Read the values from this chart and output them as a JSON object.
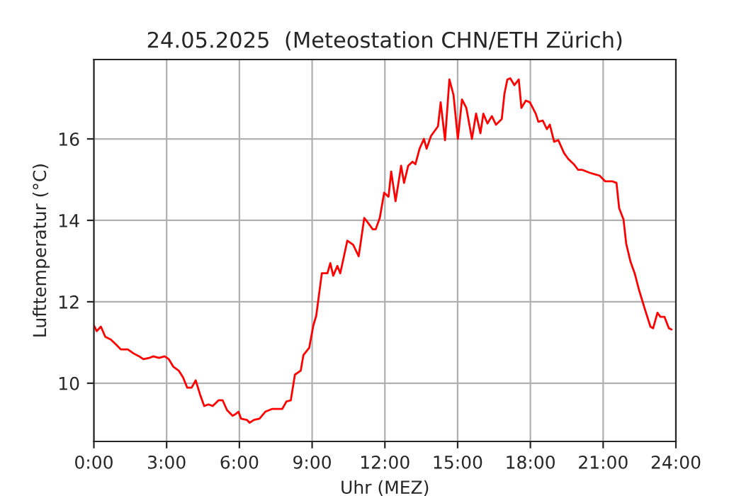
{
  "chart_data": {
    "type": "line",
    "title": "24.05.2025  (Meteostation CHN/ETH Zürich)",
    "xlabel": "Uhr (MEZ)",
    "ylabel": "Lufttemperatur (°C)",
    "x": [
      0,
      0.12,
      0.29,
      0.47,
      0.7,
      0.93,
      1.11,
      1.4,
      1.64,
      1.87,
      2.04,
      2.28,
      2.45,
      2.69,
      2.92,
      3.09,
      3.27,
      3.5,
      3.68,
      3.85,
      4.03,
      4.2,
      4.38,
      4.55,
      4.73,
      4.9,
      5.14,
      5.31,
      5.49,
      5.72,
      5.84,
      5.96,
      6.07,
      6.31,
      6.42,
      6.6,
      6.83,
      7.07,
      7.36,
      7.59,
      7.77,
      7.94,
      8.12,
      8.29,
      8.53,
      8.64,
      8.88,
      9.05,
      9.17,
      9.4,
      9.63,
      9.75,
      9.87,
      10.04,
      10.16,
      10.45,
      10.69,
      10.92,
      11.15,
      11.33,
      11.5,
      11.62,
      11.79,
      11.97,
      12.15,
      12.26,
      12.44,
      12.67,
      12.79,
      12.96,
      13.14,
      13.26,
      13.43,
      13.61,
      13.72,
      13.9,
      14.19,
      14.3,
      14.48,
      14.66,
      14.83,
      15.01,
      15.18,
      15.36,
      15.59,
      15.76,
      15.94,
      16.06,
      16.23,
      16.41,
      16.58,
      16.82,
      16.93,
      17.05,
      17.17,
      17.34,
      17.52,
      17.63,
      17.81,
      17.98,
      18.22,
      18.33,
      18.51,
      18.68,
      18.8,
      18.98,
      19.15,
      19.39,
      19.56,
      19.79,
      19.97,
      20.14,
      20.44,
      20.67,
      20.85,
      21.08,
      21.37,
      21.55,
      21.66,
      21.84,
      21.95,
      22.13,
      22.3,
      22.48,
      22.71,
      22.95,
      23.06,
      23.24,
      23.36,
      23.53,
      23.71,
      23.82
    ],
    "series": [
      {
        "color": "#ff0000",
        "values": [
          11.42,
          11.28,
          11.39,
          11.14,
          11.07,
          10.94,
          10.83,
          10.83,
          10.73,
          10.66,
          10.59,
          10.62,
          10.66,
          10.62,
          10.66,
          10.59,
          10.41,
          10.31,
          10.14,
          9.89,
          9.89,
          10.07,
          9.72,
          9.44,
          9.48,
          9.44,
          9.58,
          9.58,
          9.34,
          9.2,
          9.24,
          9.3,
          9.13,
          9.1,
          9.03,
          9.1,
          9.13,
          9.3,
          9.37,
          9.37,
          9.37,
          9.55,
          9.58,
          10.21,
          10.31,
          10.69,
          10.87,
          11.42,
          11.66,
          12.7,
          12.7,
          12.95,
          12.64,
          12.88,
          12.7,
          13.5,
          13.4,
          13.12,
          14.06,
          13.92,
          13.78,
          13.78,
          14.06,
          14.68,
          14.58,
          15.2,
          14.47,
          15.34,
          14.92,
          15.34,
          15.44,
          15.38,
          15.76,
          16.0,
          15.76,
          16.07,
          16.31,
          16.9,
          15.97,
          17.46,
          17.08,
          16.0,
          16.97,
          16.76,
          16.0,
          16.62,
          16.14,
          16.62,
          16.38,
          16.56,
          16.35,
          16.49,
          17.11,
          17.46,
          17.49,
          17.32,
          17.46,
          16.76,
          16.94,
          16.9,
          16.62,
          16.42,
          16.45,
          16.24,
          16.35,
          15.93,
          15.97,
          15.65,
          15.51,
          15.38,
          15.24,
          15.24,
          15.17,
          15.13,
          15.1,
          14.96,
          14.96,
          14.92,
          14.3,
          14.02,
          13.43,
          12.98,
          12.7,
          12.29,
          11.84,
          11.39,
          11.35,
          11.73,
          11.63,
          11.63,
          11.35,
          11.32
        ]
      }
    ],
    "xlim": [
      0,
      24
    ],
    "xticks": [
      {
        "value": 0,
        "label": "0:00"
      },
      {
        "value": 3,
        "label": "3:00"
      },
      {
        "value": 6,
        "label": "6:00"
      },
      {
        "value": 9,
        "label": "9:00"
      },
      {
        "value": 12,
        "label": "12:00"
      },
      {
        "value": 15,
        "label": "15:00"
      },
      {
        "value": 18,
        "label": "18:00"
      },
      {
        "value": 21,
        "label": "21:00"
      },
      {
        "value": 24,
        "label": "24:00"
      }
    ],
    "ylim": [
      8.57,
      17.95
    ],
    "yticks": [
      10,
      12,
      14,
      16
    ],
    "grid": true
  }
}
